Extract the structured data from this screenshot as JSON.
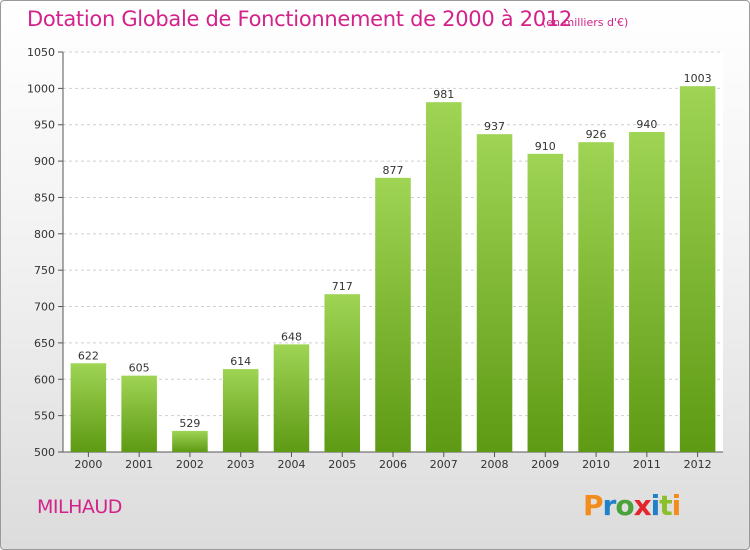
{
  "title": "Dotation Globale de Fonctionnement de 2000 à 2012",
  "subtitle": "(en milliers d'€)",
  "commune": "MILHAUD",
  "logo": {
    "letters": [
      "P",
      "r",
      "o",
      "x",
      "i",
      "t",
      "i"
    ],
    "colors": [
      "#f28c1c",
      "#1f82c9",
      "#49a33a",
      "#e3262e",
      "#1f82c9",
      "#8bbf2b",
      "#f28c1c"
    ]
  },
  "colors": {
    "title": "#d3228a",
    "bar_light": "#9fd454",
    "bar_dark": "#5e9a14"
  },
  "chart_data": {
    "type": "bar",
    "categories": [
      "2000",
      "2001",
      "2002",
      "2003",
      "2004",
      "2005",
      "2006",
      "2007",
      "2008",
      "2009",
      "2010",
      "2011",
      "2012"
    ],
    "values": [
      622,
      605,
      529,
      614,
      648,
      717,
      877,
      981,
      937,
      910,
      926,
      940,
      1003
    ],
    "title": "Dotation Globale de Fonctionnement de 2000 à 2012",
    "subtitle": "(en milliers d'€)",
    "xlabel": "",
    "ylabel": "",
    "ylim": [
      500,
      1050
    ],
    "yticks": [
      500,
      550,
      600,
      650,
      700,
      750,
      800,
      850,
      900,
      950,
      1000,
      1050
    ],
    "grid": true,
    "legend": "none"
  }
}
